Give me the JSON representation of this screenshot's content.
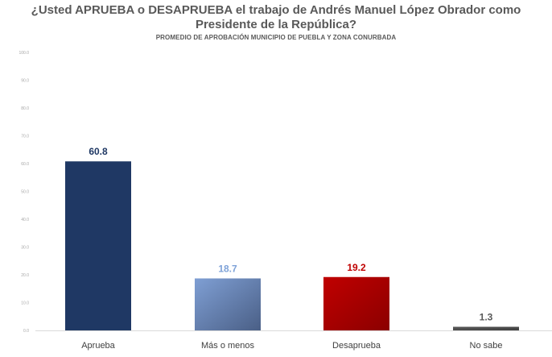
{
  "header": {
    "title_line1": "¿Usted APRUEBA o DESAPRUEBA el trabajo de Andrés Manuel López Obrador como",
    "title_line2": "Presidente de la República?",
    "subtitle": "PROMEDIO DE APROBACIÓN MUNICIPIO DE PUEBLA Y ZONA CONURBADA"
  },
  "chart_data": {
    "type": "bar",
    "title": "¿Usted APRUEBA o DESAPRUEBA el trabajo de Andrés Manuel López Obrador como Presidente de la República?",
    "subtitle": "PROMEDIO DE APROBACIÓN MUNICIPIO DE PUEBLA Y ZONA CONURBADA",
    "categories": [
      "Aprueba",
      "Más o menos",
      "Desaprueba",
      "No sabe"
    ],
    "values": [
      60.8,
      18.7,
      19.2,
      1.3
    ],
    "value_labels": [
      "60.8",
      "18.7",
      "19.2",
      "1.3"
    ],
    "ylim": [
      0,
      100
    ],
    "yticks": [
      "0.0",
      "10.0",
      "20.0",
      "30.0",
      "40.0",
      "50.0",
      "60.0",
      "70.0",
      "80.0",
      "90.0",
      "100.0"
    ],
    "grid": false,
    "legend": "none",
    "bar_colors": [
      "#1f3864",
      "#7f9fd4",
      "#c00000",
      "#595959"
    ],
    "bar_gradient_to": [
      "#1f3864",
      "#4a5f86",
      "#8b0000",
      "#3f3f3f"
    ],
    "label_colors": [
      "#1f3864",
      "#7ea2d8",
      "#c00000",
      "#595959"
    ]
  }
}
